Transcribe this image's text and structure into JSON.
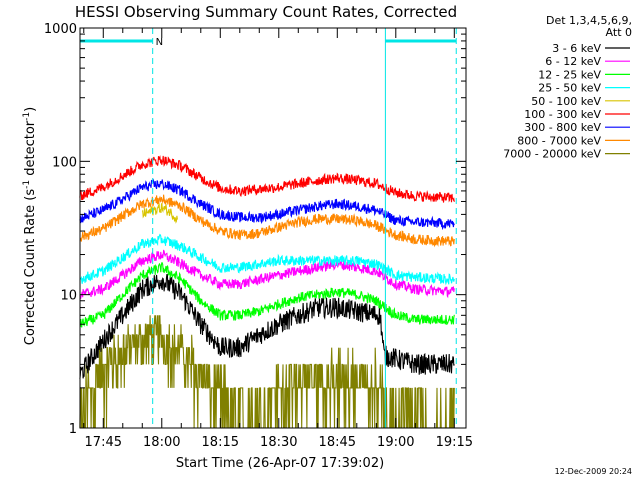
{
  "chart_data": {
    "type": "line",
    "title": "HESSI Observing Summary Count Rates, Corrected",
    "xlabel": "Start Time (26-Apr-07 17:39:02)",
    "ylabel": "Corrected Count Rate (s",
    "ylabel_sup1": "-1",
    "ylabel_mid": " detector",
    "ylabel_sup2": "-1",
    "ylabel_end": ")",
    "y_scale": "log",
    "ylim": [
      1,
      1000
    ],
    "y_ticks": [
      {
        "value": 1,
        "label": "1"
      },
      {
        "value": 10,
        "label": "10"
      },
      {
        "value": 100,
        "label": "100"
      },
      {
        "value": 1000,
        "label": "1000"
      }
    ],
    "xlim": [
      "17:39:02",
      "19:18:00"
    ],
    "x_ticks": [
      {
        "value": "17:45",
        "label": "17:45"
      },
      {
        "value": "18:00",
        "label": "18:00"
      },
      {
        "value": "18:15",
        "label": "18:15"
      },
      {
        "value": "18:30",
        "label": "18:30"
      },
      {
        "value": "18:45",
        "label": "18:45"
      },
      {
        "value": "19:00",
        "label": "19:00"
      },
      {
        "value": "19:15",
        "label": "19:15"
      }
    ],
    "legend": {
      "placement": "right",
      "header": [
        "Det 1,3,4,5,6,9,",
        "Att 0"
      ]
    },
    "night_bars": [
      {
        "start": "17:39:02",
        "end": "17:57:40",
        "label": "N",
        "color": "#00e6e6"
      },
      {
        "start": "18:57:20",
        "end": "19:15:30",
        "label": "",
        "color": "#00e6e6"
      }
    ],
    "dashed_markers": [
      "17:57:40",
      "19:15:30"
    ],
    "solid_markers": [
      "18:57:20"
    ],
    "footer_timestamp": "12-Dec-2009 20:24",
    "series": [
      {
        "name": "3 - 6 keV",
        "color": "#000000",
        "points": [
          [
            "17:39",
            2.5
          ],
          [
            "17:45",
            4.5
          ],
          [
            "17:50",
            7
          ],
          [
            "17:55",
            11
          ],
          [
            "18:00",
            13
          ],
          [
            "18:05",
            10
          ],
          [
            "18:10",
            6
          ],
          [
            "18:15",
            4
          ],
          [
            "18:20",
            4
          ],
          [
            "18:25",
            5
          ],
          [
            "18:30",
            6
          ],
          [
            "18:35",
            7
          ],
          [
            "18:40",
            8
          ],
          [
            "18:45",
            8
          ],
          [
            "18:50",
            7.5
          ],
          [
            "18:56",
            7
          ],
          [
            "18:57",
            3.5
          ],
          [
            "19:05",
            3
          ],
          [
            "19:15",
            3
          ]
        ]
      },
      {
        "name": "6 - 12 keV",
        "color": "#ff00ff",
        "points": [
          [
            "17:39",
            10
          ],
          [
            "17:45",
            11
          ],
          [
            "17:50",
            14
          ],
          [
            "17:55",
            18
          ],
          [
            "18:00",
            20
          ],
          [
            "18:05",
            17
          ],
          [
            "18:10",
            14
          ],
          [
            "18:15",
            12
          ],
          [
            "18:20",
            12
          ],
          [
            "18:25",
            13
          ],
          [
            "18:30",
            14
          ],
          [
            "18:35",
            15
          ],
          [
            "18:40",
            16
          ],
          [
            "18:45",
            17
          ],
          [
            "18:50",
            16
          ],
          [
            "18:55",
            15
          ],
          [
            "19:00",
            12
          ],
          [
            "19:05",
            11
          ],
          [
            "19:15",
            10.5
          ]
        ]
      },
      {
        "name": "12 - 25 keV",
        "color": "#00ff00",
        "points": [
          [
            "17:39",
            6
          ],
          [
            "17:45",
            7
          ],
          [
            "17:50",
            10
          ],
          [
            "17:55",
            14
          ],
          [
            "18:00",
            16
          ],
          [
            "18:05",
            13
          ],
          [
            "18:10",
            9
          ],
          [
            "18:15",
            7
          ],
          [
            "18:20",
            7
          ],
          [
            "18:25",
            7.5
          ],
          [
            "18:30",
            8.5
          ],
          [
            "18:35",
            9.5
          ],
          [
            "18:40",
            10
          ],
          [
            "18:45",
            10.5
          ],
          [
            "18:50",
            10
          ],
          [
            "18:55",
            9
          ],
          [
            "19:00",
            7
          ],
          [
            "19:05",
            6.5
          ],
          [
            "19:15",
            6.5
          ]
        ]
      },
      {
        "name": "25 - 50 keV",
        "color": "#00ffff",
        "points": [
          [
            "17:39",
            13
          ],
          [
            "17:45",
            15
          ],
          [
            "17:50",
            19
          ],
          [
            "17:55",
            24
          ],
          [
            "18:00",
            26
          ],
          [
            "18:05",
            23
          ],
          [
            "18:10",
            19
          ],
          [
            "18:15",
            16
          ],
          [
            "18:20",
            16
          ],
          [
            "18:25",
            17
          ],
          [
            "18:30",
            18
          ],
          [
            "18:35",
            18
          ],
          [
            "18:40",
            18
          ],
          [
            "18:45",
            18
          ],
          [
            "18:50",
            18
          ],
          [
            "18:55",
            17
          ],
          [
            "19:00",
            14
          ],
          [
            "19:05",
            13.5
          ],
          [
            "19:15",
            13
          ]
        ]
      },
      {
        "name": "50 - 100 keV",
        "color": "#d8c400",
        "points": [
          [
            "17:55",
            40
          ],
          [
            "17:58",
            43
          ],
          [
            "18:00",
            45
          ],
          [
            "18:02",
            42
          ],
          [
            "18:04",
            37
          ]
        ]
      },
      {
        "name": "100 - 300 keV",
        "color": "#ff0000",
        "points": [
          [
            "17:39",
            55
          ],
          [
            "17:45",
            64
          ],
          [
            "17:50",
            78
          ],
          [
            "17:55",
            95
          ],
          [
            "18:00",
            103
          ],
          [
            "18:05",
            92
          ],
          [
            "18:10",
            75
          ],
          [
            "18:15",
            63
          ],
          [
            "18:20",
            60
          ],
          [
            "18:25",
            62
          ],
          [
            "18:30",
            64
          ],
          [
            "18:35",
            68
          ],
          [
            "18:40",
            72
          ],
          [
            "18:45",
            75
          ],
          [
            "18:50",
            72
          ],
          [
            "18:55",
            68
          ],
          [
            "19:00",
            58
          ],
          [
            "19:05",
            55
          ],
          [
            "19:15",
            53
          ]
        ]
      },
      {
        "name": "300 - 800 keV",
        "color": "#0000ff",
        "points": [
          [
            "17:39",
            37
          ],
          [
            "17:45",
            43
          ],
          [
            "17:50",
            52
          ],
          [
            "17:55",
            64
          ],
          [
            "18:00",
            68
          ],
          [
            "18:05",
            60
          ],
          [
            "18:10",
            48
          ],
          [
            "18:15",
            40
          ],
          [
            "18:20",
            38
          ],
          [
            "18:25",
            38
          ],
          [
            "18:30",
            40
          ],
          [
            "18:35",
            43
          ],
          [
            "18:40",
            46
          ],
          [
            "18:45",
            48
          ],
          [
            "18:50",
            46
          ],
          [
            "18:55",
            43
          ],
          [
            "19:00",
            36
          ],
          [
            "19:05",
            35
          ],
          [
            "19:15",
            34
          ]
        ]
      },
      {
        "name": "800 - 7000 keV",
        "color": "#ff8800",
        "points": [
          [
            "17:39",
            27
          ],
          [
            "17:45",
            31
          ],
          [
            "17:50",
            39
          ],
          [
            "17:55",
            48
          ],
          [
            "18:00",
            52
          ],
          [
            "18:05",
            46
          ],
          [
            "18:10",
            36
          ],
          [
            "18:15",
            30
          ],
          [
            "18:20",
            28
          ],
          [
            "18:25",
            29
          ],
          [
            "18:30",
            32
          ],
          [
            "18:35",
            35
          ],
          [
            "18:40",
            37
          ],
          [
            "18:45",
            37
          ],
          [
            "18:50",
            36
          ],
          [
            "18:55",
            33
          ],
          [
            "19:00",
            28
          ],
          [
            "19:05",
            26
          ],
          [
            "19:15",
            25
          ]
        ]
      },
      {
        "name": "7000 - 20000 keV",
        "color": "#808000",
        "points": [
          [
            "17:39",
            1.7
          ],
          [
            "17:45",
            3
          ],
          [
            "17:50",
            4
          ],
          [
            "17:55",
            5
          ],
          [
            "18:00",
            5
          ],
          [
            "18:05",
            4
          ],
          [
            "18:10",
            3
          ],
          [
            "18:15",
            2
          ],
          [
            "18:20",
            1.5
          ],
          [
            "18:25",
            1.6
          ],
          [
            "18:30",
            2.2
          ],
          [
            "18:35",
            2.5
          ],
          [
            "18:40",
            2.6
          ],
          [
            "18:45",
            2.6
          ],
          [
            "18:50",
            2.6
          ],
          [
            "18:56",
            2.6
          ],
          [
            "18:57",
            1.7
          ],
          [
            "19:05",
            1.6
          ],
          [
            "19:15",
            1.5
          ]
        ]
      }
    ]
  }
}
